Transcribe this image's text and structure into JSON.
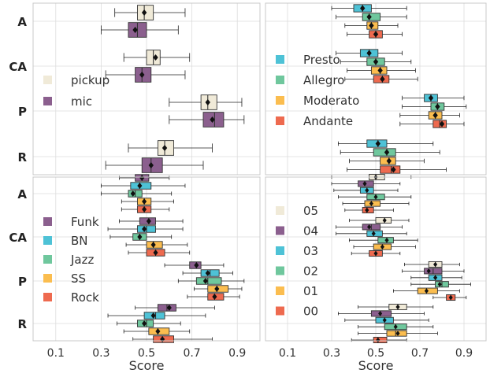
{
  "chart_data": [
    {
      "type": "boxplot",
      "panel": "top-left",
      "categories": [
        "A",
        "CA",
        "P",
        "R"
      ],
      "xlim": [
        0.0,
        1.0
      ],
      "xticks": [
        "0.1",
        "0.3",
        "0.5",
        "0.7",
        "0.9"
      ],
      "xlabel": "",
      "legend": {
        "position": "center-left",
        "entries": [
          "pickup",
          "mic"
        ]
      },
      "series": [
        {
          "name": "pickup",
          "color": "#f0ead8",
          "boxes": [
            {
              "min": 0.36,
              "q1": 0.46,
              "median": 0.49,
              "q3": 0.53,
              "max": 0.67,
              "mean": 0.49
            },
            {
              "min": 0.4,
              "q1": 0.5,
              "median": 0.53,
              "q3": 0.56,
              "max": 0.69,
              "mean": 0.54
            },
            {
              "min": 0.6,
              "q1": 0.74,
              "median": 0.77,
              "q3": 0.81,
              "max": 0.92,
              "mean": 0.77
            },
            {
              "min": 0.42,
              "q1": 0.55,
              "median": 0.58,
              "q3": 0.62,
              "max": 0.79,
              "mean": 0.58
            }
          ]
        },
        {
          "name": "mic",
          "color": "#8b5f8e",
          "boxes": [
            {
              "min": 0.3,
              "q1": 0.42,
              "median": 0.46,
              "q3": 0.5,
              "max": 0.64,
              "mean": 0.45
            },
            {
              "min": 0.32,
              "q1": 0.45,
              "median": 0.48,
              "q3": 0.52,
              "max": 0.67,
              "mean": 0.48
            },
            {
              "min": 0.6,
              "q1": 0.75,
              "median": 0.8,
              "q3": 0.84,
              "max": 0.93,
              "mean": 0.79
            },
            {
              "min": 0.32,
              "q1": 0.48,
              "median": 0.52,
              "q3": 0.57,
              "max": 0.75,
              "mean": 0.52
            }
          ]
        }
      ]
    },
    {
      "type": "boxplot",
      "panel": "top-right",
      "categories": [
        "A",
        "CA",
        "P",
        "R"
      ],
      "xlim": [
        0.0,
        1.0
      ],
      "xticks": [
        "0.1",
        "0.3",
        "0.5",
        "0.7",
        "0.9"
      ],
      "xlabel": "",
      "legend": {
        "position": "center-left",
        "entries": [
          "Presto",
          "Allegro",
          "Moderato",
          "Andante"
        ]
      },
      "series": [
        {
          "name": "Presto",
          "color": "#4ec2d6",
          "boxes": [
            {
              "min": 0.3,
              "q1": 0.4,
              "median": 0.44,
              "q3": 0.48,
              "max": 0.64,
              "mean": 0.44
            },
            {
              "min": 0.32,
              "q1": 0.43,
              "median": 0.47,
              "q3": 0.51,
              "max": 0.62,
              "mean": 0.47
            },
            {
              "min": 0.62,
              "q1": 0.72,
              "median": 0.75,
              "q3": 0.78,
              "max": 0.9,
              "mean": 0.75
            },
            {
              "min": 0.33,
              "q1": 0.46,
              "median": 0.51,
              "q3": 0.55,
              "max": 0.76,
              "mean": 0.51
            }
          ]
        },
        {
          "name": "Allegro",
          "color": "#6fc79d",
          "boxes": [
            {
              "min": 0.32,
              "q1": 0.44,
              "median": 0.47,
              "q3": 0.52,
              "max": 0.64,
              "mean": 0.47
            },
            {
              "min": 0.34,
              "q1": 0.46,
              "median": 0.5,
              "q3": 0.54,
              "max": 0.66,
              "mean": 0.5
            },
            {
              "min": 0.62,
              "q1": 0.75,
              "median": 0.78,
              "q3": 0.81,
              "max": 0.91,
              "mean": 0.78
            },
            {
              "min": 0.34,
              "q1": 0.49,
              "median": 0.55,
              "q3": 0.59,
              "max": 0.79,
              "mean": 0.55
            }
          ]
        },
        {
          "name": "Moderato",
          "color": "#fbbd4f",
          "boxes": [
            {
              "min": 0.36,
              "q1": 0.46,
              "median": 0.48,
              "q3": 0.51,
              "max": 0.6,
              "mean": 0.48
            },
            {
              "min": 0.37,
              "q1": 0.48,
              "median": 0.52,
              "q3": 0.55,
              "max": 0.68,
              "mean": 0.52
            },
            {
              "min": 0.61,
              "q1": 0.74,
              "median": 0.77,
              "q3": 0.8,
              "max": 0.88,
              "mean": 0.77
            },
            {
              "min": 0.38,
              "q1": 0.52,
              "median": 0.56,
              "q3": 0.59,
              "max": 0.72,
              "mean": 0.56
            }
          ]
        },
        {
          "name": "Andante",
          "color": "#ee6a4f",
          "boxes": [
            {
              "min": 0.37,
              "q1": 0.47,
              "median": 0.5,
              "q3": 0.53,
              "max": 0.62,
              "mean": 0.5
            },
            {
              "min": 0.36,
              "q1": 0.49,
              "median": 0.53,
              "q3": 0.56,
              "max": 0.69,
              "mean": 0.53
            },
            {
              "min": 0.61,
              "q1": 0.76,
              "median": 0.79,
              "q3": 0.82,
              "max": 0.9,
              "mean": 0.8
            },
            {
              "min": 0.37,
              "q1": 0.52,
              "median": 0.57,
              "q3": 0.61,
              "max": 0.82,
              "mean": 0.58
            }
          ]
        }
      ]
    },
    {
      "type": "boxplot",
      "panel": "bottom-left",
      "categories": [
        "A",
        "CA",
        "P",
        "R"
      ],
      "xlim": [
        0.0,
        1.0
      ],
      "xticks": [
        "0.1",
        "0.3",
        "0.5",
        "0.7",
        "0.9"
      ],
      "xlabel": "Score",
      "legend": {
        "position": "center-left",
        "entries": [
          "Funk",
          "BN",
          "Jazz",
          "SS",
          "Rock"
        ]
      },
      "series": [
        {
          "name": "Funk",
          "color": "#8b5f8e",
          "boxes": [
            {
              "min": 0.38,
              "q1": 0.45,
              "median": 0.48,
              "q3": 0.51,
              "max": 0.6,
              "mean": 0.48
            },
            {
              "min": 0.38,
              "q1": 0.47,
              "median": 0.51,
              "q3": 0.54,
              "max": 0.66,
              "mean": 0.51
            },
            {
              "min": 0.58,
              "q1": 0.69,
              "median": 0.72,
              "q3": 0.74,
              "max": 0.84,
              "mean": 0.72
            },
            {
              "min": 0.45,
              "q1": 0.55,
              "median": 0.59,
              "q3": 0.63,
              "max": 0.8,
              "mean": 0.6
            }
          ]
        },
        {
          "name": "BN",
          "color": "#4ec2d6",
          "boxes": [
            {
              "min": 0.3,
              "q1": 0.43,
              "median": 0.47,
              "q3": 0.52,
              "max": 0.67,
              "mean": 0.47
            },
            {
              "min": 0.33,
              "q1": 0.46,
              "median": 0.5,
              "q3": 0.54,
              "max": 0.66,
              "mean": 0.49
            },
            {
              "min": 0.66,
              "q1": 0.74,
              "median": 0.78,
              "q3": 0.82,
              "max": 0.88,
              "mean": 0.77
            },
            {
              "min": 0.33,
              "q1": 0.49,
              "median": 0.54,
              "q3": 0.58,
              "max": 0.76,
              "mean": 0.53
            }
          ]
        },
        {
          "name": "Jazz",
          "color": "#6fc79d",
          "boxes": [
            {
              "min": 0.3,
              "q1": 0.42,
              "median": 0.45,
              "q3": 0.48,
              "max": 0.61,
              "mean": 0.44
            },
            {
              "min": 0.34,
              "q1": 0.44,
              "median": 0.47,
              "q3": 0.5,
              "max": 0.61,
              "mean": 0.47
            },
            {
              "min": 0.64,
              "q1": 0.72,
              "median": 0.77,
              "q3": 0.83,
              "max": 0.93,
              "mean": 0.76
            },
            {
              "min": 0.37,
              "q1": 0.46,
              "median": 0.5,
              "q3": 0.53,
              "max": 0.65,
              "mean": 0.49
            }
          ]
        },
        {
          "name": "SS",
          "color": "#fbbd4f",
          "boxes": [
            {
              "min": 0.39,
              "q1": 0.46,
              "median": 0.49,
              "q3": 0.52,
              "max": 0.62,
              "mean": 0.49
            },
            {
              "min": 0.41,
              "q1": 0.5,
              "median": 0.53,
              "q3": 0.57,
              "max": 0.68,
              "mean": 0.53
            },
            {
              "min": 0.71,
              "q1": 0.77,
              "median": 0.81,
              "q3": 0.86,
              "max": 0.92,
              "mean": 0.81
            },
            {
              "min": 0.4,
              "q1": 0.51,
              "median": 0.55,
              "q3": 0.6,
              "max": 0.69,
              "mean": 0.55
            }
          ]
        },
        {
          "name": "Rock",
          "color": "#ee6a4f",
          "boxes": [
            {
              "min": 0.39,
              "q1": 0.46,
              "median": 0.49,
              "q3": 0.52,
              "max": 0.6,
              "mean": 0.49
            },
            {
              "min": 0.42,
              "q1": 0.5,
              "median": 0.54,
              "q3": 0.58,
              "max": 0.69,
              "mean": 0.54
            },
            {
              "min": 0.68,
              "q1": 0.77,
              "median": 0.8,
              "q3": 0.84,
              "max": 0.91,
              "mean": 0.8
            },
            {
              "min": 0.44,
              "q1": 0.53,
              "median": 0.57,
              "q3": 0.62,
              "max": 0.79,
              "mean": 0.57
            }
          ]
        }
      ]
    },
    {
      "type": "boxplot",
      "panel": "bottom-right",
      "categories": [
        "A",
        "CA",
        "P",
        "R"
      ],
      "xlim": [
        0.0,
        1.0
      ],
      "xticks": [
        "0.1",
        "0.3",
        "0.5",
        "0.7",
        "0.9"
      ],
      "xlabel": "Score",
      "legend": {
        "position": "center-left",
        "entries": [
          "05",
          "04",
          "03",
          "02",
          "01",
          "00"
        ]
      },
      "series": [
        {
          "name": "05",
          "color": "#f0ead8",
          "boxes": [
            {
              "min": 0.3,
              "q1": 0.47,
              "median": 0.5,
              "q3": 0.54,
              "max": 0.66,
              "mean": 0.5
            },
            {
              "min": 0.38,
              "q1": 0.5,
              "median": 0.54,
              "q3": 0.57,
              "max": 0.65,
              "mean": 0.54
            },
            {
              "min": 0.63,
              "q1": 0.74,
              "median": 0.77,
              "q3": 0.8,
              "max": 0.88,
              "mean": 0.77
            },
            {
              "min": 0.42,
              "q1": 0.56,
              "median": 0.6,
              "q3": 0.64,
              "max": 0.76,
              "mean": 0.6
            }
          ]
        },
        {
          "name": "04",
          "color": "#8b5f8e",
          "boxes": [
            {
              "min": 0.3,
              "q1": 0.42,
              "median": 0.45,
              "q3": 0.49,
              "max": 0.61,
              "mean": 0.45
            },
            {
              "min": 0.32,
              "q1": 0.44,
              "median": 0.48,
              "q3": 0.52,
              "max": 0.62,
              "mean": 0.47
            },
            {
              "min": 0.62,
              "q1": 0.72,
              "median": 0.76,
              "q3": 0.8,
              "max": 0.9,
              "mean": 0.74
            },
            {
              "min": 0.33,
              "q1": 0.48,
              "median": 0.52,
              "q3": 0.57,
              "max": 0.72,
              "mean": 0.52
            }
          ]
        },
        {
          "name": "03",
          "color": "#4ec2d6",
          "boxes": [
            {
              "min": 0.31,
              "q1": 0.43,
              "median": 0.46,
              "q3": 0.49,
              "max": 0.6,
              "mean": 0.46
            },
            {
              "min": 0.32,
              "q1": 0.46,
              "median": 0.49,
              "q3": 0.53,
              "max": 0.64,
              "mean": 0.49
            },
            {
              "min": 0.66,
              "q1": 0.74,
              "median": 0.77,
              "q3": 0.8,
              "max": 0.89,
              "mean": 0.77
            },
            {
              "min": 0.36,
              "q1": 0.5,
              "median": 0.54,
              "q3": 0.58,
              "max": 0.74,
              "mean": 0.54
            }
          ]
        },
        {
          "name": "02",
          "color": "#6fc79d",
          "boxes": [
            {
              "min": 0.33,
              "q1": 0.46,
              "median": 0.5,
              "q3": 0.54,
              "max": 0.66,
              "mean": 0.5
            },
            {
              "min": 0.38,
              "q1": 0.51,
              "median": 0.55,
              "q3": 0.58,
              "max": 0.69,
              "mean": 0.55
            },
            {
              "min": 0.66,
              "q1": 0.77,
              "median": 0.8,
              "q3": 0.83,
              "max": 0.93,
              "mean": 0.79
            },
            {
              "min": 0.42,
              "q1": 0.54,
              "median": 0.59,
              "q3": 0.64,
              "max": 0.76,
              "mean": 0.59
            }
          ]
        },
        {
          "name": "01",
          "color": "#fbbd4f",
          "boxes": [
            {
              "min": 0.35,
              "q1": 0.45,
              "median": 0.48,
              "q3": 0.52,
              "max": 0.65,
              "mean": 0.48
            },
            {
              "min": 0.4,
              "q1": 0.49,
              "median": 0.53,
              "q3": 0.57,
              "max": 0.68,
              "mean": 0.53
            },
            {
              "min": 0.58,
              "q1": 0.69,
              "median": 0.73,
              "q3": 0.78,
              "max": 0.88,
              "mean": 0.73
            },
            {
              "min": 0.42,
              "q1": 0.55,
              "median": 0.59,
              "q3": 0.64,
              "max": 0.78,
              "mean": 0.6
            }
          ]
        },
        {
          "name": "00",
          "color": "#ee6a4f",
          "boxes": [
            {
              "min": 0.36,
              "q1": 0.44,
              "median": 0.46,
              "q3": 0.49,
              "max": 0.58,
              "mean": 0.46
            },
            {
              "min": 0.39,
              "q1": 0.47,
              "median": 0.5,
              "q3": 0.53,
              "max": 0.61,
              "mean": 0.5
            },
            {
              "min": 0.76,
              "q1": 0.82,
              "median": 0.84,
              "q3": 0.86,
              "max": 0.91,
              "mean": 0.84
            },
            {
              "min": 0.39,
              "q1": 0.49,
              "median": 0.51,
              "q3": 0.55,
              "max": 0.64,
              "mean": 0.51
            }
          ]
        }
      ]
    }
  ]
}
